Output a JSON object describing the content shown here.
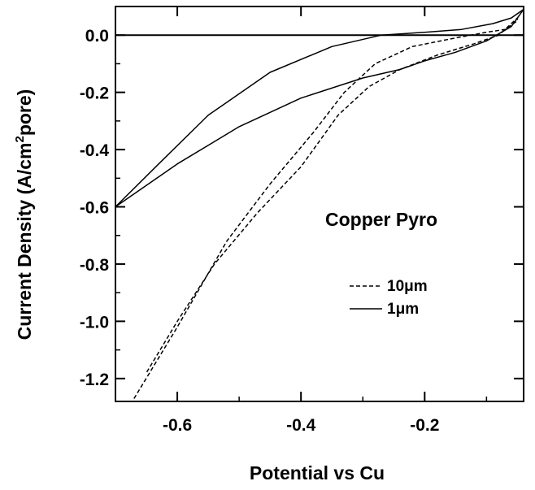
{
  "chart_data": {
    "type": "line",
    "title": "",
    "xlabel": "Potential vs Cu",
    "ylabel": {
      "main": "Current Density (A/cm",
      "sup": "2",
      "tail": "pore)"
    },
    "xlim": [
      -0.7,
      -0.04
    ],
    "ylim": [
      -1.28,
      0.1
    ],
    "x_ticks": [
      -0.6,
      -0.4,
      -0.2
    ],
    "x_tick_labels": [
      "-0.6",
      "-0.4",
      "-0.2"
    ],
    "y_ticks": [
      0.0,
      -0.2,
      -0.4,
      -0.6,
      -0.8,
      -1.0,
      -1.2
    ],
    "y_tick_labels": [
      "0.0",
      "-0.2",
      "-0.4",
      "-0.6",
      "-0.8",
      "-1.0",
      "-1.2"
    ],
    "annotation": "Copper Pyro",
    "zero_line": true,
    "grid": false,
    "legend_position": "right",
    "series": [
      {
        "name": "10μm",
        "style": "dashed",
        "x": [
          -0.67,
          -0.6,
          -0.52,
          -0.45,
          -0.38,
          -0.33,
          -0.28,
          -0.22,
          -0.15,
          -0.1,
          -0.07,
          -0.05,
          -0.05,
          -0.06,
          -0.08,
          -0.12,
          -0.18,
          -0.24,
          -0.29,
          -0.34,
          -0.4,
          -0.47,
          -0.54,
          -0.6,
          -0.65
        ],
        "y": [
          -1.27,
          -1.02,
          -0.72,
          -0.52,
          -0.34,
          -0.2,
          -0.1,
          -0.04,
          -0.01,
          0.01,
          0.02,
          0.05,
          0.06,
          0.04,
          0.0,
          -0.03,
          -0.07,
          -0.12,
          -0.18,
          -0.28,
          -0.46,
          -0.62,
          -0.8,
          -1.0,
          -1.18
        ]
      },
      {
        "name": "1μm",
        "style": "solid",
        "x": [
          -0.7,
          -0.6,
          -0.5,
          -0.4,
          -0.3,
          -0.24,
          -0.2,
          -0.15,
          -0.1,
          -0.06,
          -0.04,
          -0.06,
          -0.09,
          -0.14,
          -0.2,
          -0.27,
          -0.35,
          -0.45,
          -0.55,
          -0.63,
          -0.7
        ],
        "y": [
          -0.6,
          -0.45,
          -0.32,
          -0.22,
          -0.15,
          -0.12,
          -0.09,
          -0.06,
          -0.02,
          0.03,
          0.09,
          0.06,
          0.04,
          0.02,
          0.01,
          0.0,
          -0.04,
          -0.13,
          -0.28,
          -0.45,
          -0.6
        ]
      }
    ]
  }
}
